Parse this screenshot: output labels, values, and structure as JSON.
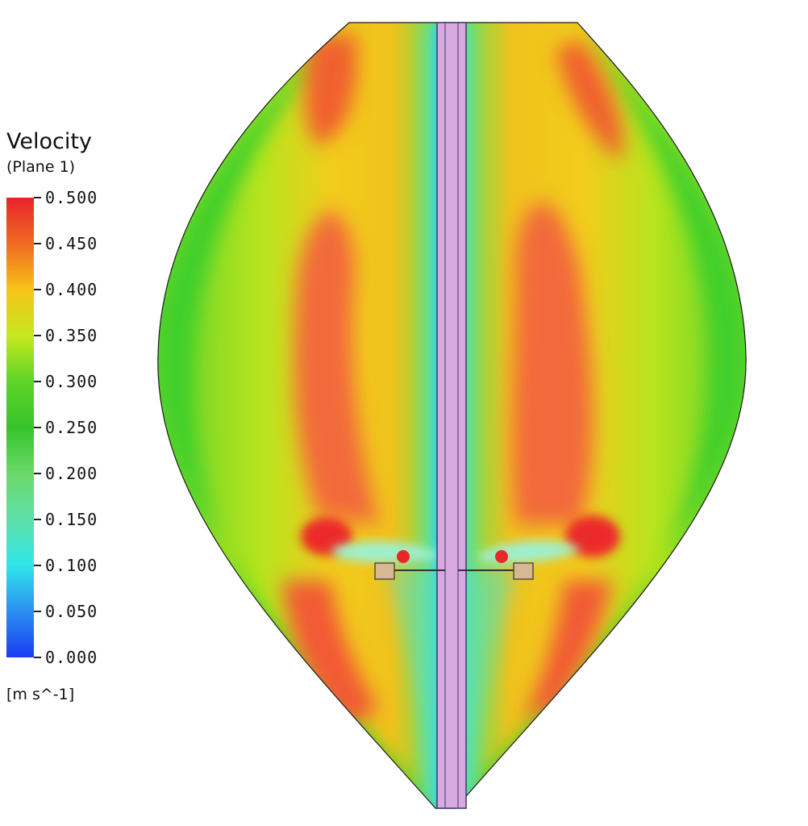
{
  "legend": {
    "title": "Velocity",
    "subtitle": "(Plane  1)",
    "unit": "[m  s^-1]",
    "ticks": [
      "0.500",
      "0.450",
      "0.400",
      "0.350",
      "0.300",
      "0.250",
      "0.200",
      "0.150",
      "0.100",
      "0.050",
      "0.000"
    ],
    "colors": [
      "#e8242a",
      "#f06a22",
      "#f6c418",
      "#c6e81e",
      "#5ed428",
      "#36c42c",
      "#6cd86a",
      "#5de0a8",
      "#2fe6e8",
      "#2b8ef0",
      "#1a3cf5"
    ]
  },
  "contour": {
    "shaft_color": "#d8a8e0",
    "vessel_edge": "#000000"
  }
}
